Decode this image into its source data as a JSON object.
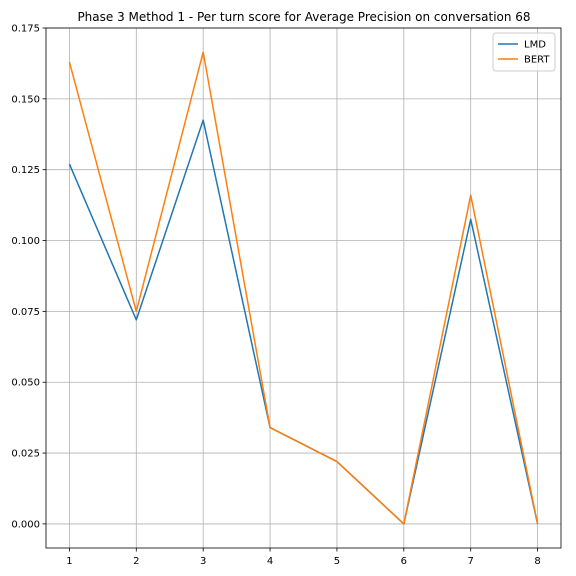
{
  "chart_data": {
    "type": "line",
    "title": "Phase 3 Method 1 - Per turn score for Average Precision on conversation 68",
    "xlabel": "",
    "ylabel": "",
    "x": [
      1,
      2,
      3,
      4,
      5,
      6,
      7,
      8
    ],
    "xlim": [
      0.65,
      8.35
    ],
    "ylim": [
      -0.0085,
      0.175
    ],
    "xticks": [
      1,
      2,
      3,
      4,
      5,
      6,
      7,
      8
    ],
    "yticks": [
      0.0,
      0.025,
      0.05,
      0.075,
      0.1,
      0.125,
      0.15,
      0.175
    ],
    "ytick_labels": [
      "0.000",
      "0.025",
      "0.050",
      "0.075",
      "0.100",
      "0.125",
      "0.150",
      "0.175"
    ],
    "grid": true,
    "legend_position": "top-right",
    "series": [
      {
        "name": "LMD",
        "color": "#1f77b4",
        "values": [
          0.127,
          0.072,
          0.1425,
          0.034,
          0.022,
          0.0,
          0.1075,
          0.0
        ]
      },
      {
        "name": "BERT",
        "color": "#ff7f0e",
        "values": [
          0.163,
          0.075,
          0.1665,
          0.034,
          0.022,
          0.0,
          0.116,
          0.0
        ]
      }
    ]
  }
}
